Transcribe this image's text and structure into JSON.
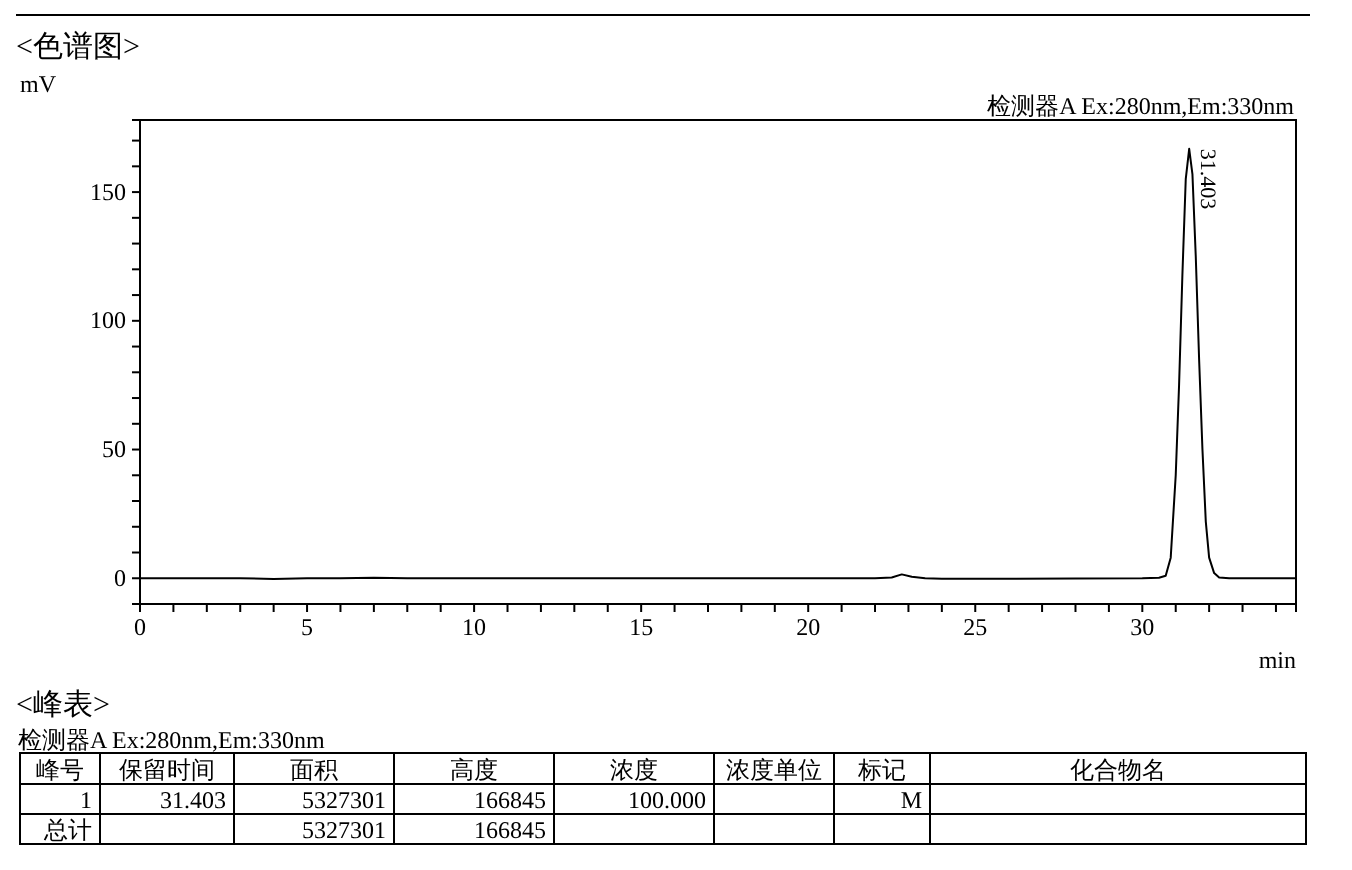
{
  "chart_data": [
    {
      "type": "line",
      "title": "<色谱图>",
      "ylabel": "mV",
      "xlabel": "min",
      "x": [
        0,
        1,
        2,
        3,
        4,
        5,
        6,
        7,
        8,
        9,
        10,
        12,
        14,
        16,
        18,
        20,
        21,
        22,
        22.5,
        22.8,
        23.1,
        23.5,
        24,
        26,
        28,
        30,
        30.5,
        30.7,
        30.85,
        31.0,
        31.1,
        31.2,
        31.3,
        31.403,
        31.5,
        31.6,
        31.7,
        31.8,
        31.9,
        32.0,
        32.15,
        32.3,
        32.6,
        33,
        34,
        34.6
      ],
      "series": [
        {
          "color": "#000000",
          "values": [
            0,
            0,
            0,
            0,
            -0.3,
            0,
            0,
            0.2,
            0,
            0,
            0,
            0,
            0,
            0,
            0,
            0,
            0,
            0,
            0.3,
            1.5,
            0.6,
            0,
            -0.2,
            -0.2,
            -0.1,
            0,
            0.2,
            1,
            8,
            40,
            75,
            118,
            155,
            166.8,
            157,
            125,
            85,
            50,
            22,
            8,
            2,
            0.3,
            0,
            0,
            0,
            0
          ]
        }
      ],
      "xlim": [
        0,
        34.6
      ],
      "ylim": [
        -10,
        178
      ],
      "xticks": [
        0,
        {
          "value": 1,
          "label": null
        },
        {
          "value": 2,
          "label": null
        },
        {
          "value": 3,
          "label": null
        },
        {
          "value": 4,
          "label": null
        },
        5,
        {
          "value": 6,
          "label": null
        },
        {
          "value": 7,
          "label": null
        },
        {
          "value": 8,
          "label": null
        },
        {
          "value": 9,
          "label": null
        },
        10,
        {
          "value": 11,
          "label": null
        },
        {
          "value": 12,
          "label": null
        },
        {
          "value": 13,
          "label": null
        },
        {
          "value": 14,
          "label": null
        },
        15,
        {
          "value": 16,
          "label": null
        },
        {
          "value": 17,
          "label": null
        },
        {
          "value": 18,
          "label": null
        },
        {
          "value": 19,
          "label": null
        },
        20,
        {
          "value": 21,
          "label": null
        },
        {
          "value": 22,
          "label": null
        },
        {
          "value": 23,
          "label": null
        },
        {
          "value": 24,
          "label": null
        },
        25,
        {
          "value": 26,
          "label": null
        },
        {
          "value": 27,
          "label": null
        },
        {
          "value": 28,
          "label": null
        },
        {
          "value": 29,
          "label": null
        },
        30,
        {
          "value": 31,
          "label": null
        },
        {
          "value": 32,
          "label": null
        },
        {
          "value": 33,
          "label": null
        },
        {
          "value": 34,
          "label": null
        }
      ],
      "yticks": [
        {
          "value": -10,
          "label": null
        },
        0,
        {
          "value": 10,
          "label": null
        },
        {
          "value": 20,
          "label": null
        },
        {
          "value": 30,
          "label": null
        },
        {
          "value": 40,
          "label": null
        },
        50,
        {
          "value": 60,
          "label": null
        },
        {
          "value": 70,
          "label": null
        },
        {
          "value": 80,
          "label": null
        },
        {
          "value": 90,
          "label": null
        },
        100,
        {
          "value": 110,
          "label": null
        },
        {
          "value": 120,
          "label": null
        },
        {
          "value": 130,
          "label": null
        },
        {
          "value": 140,
          "label": null
        },
        150,
        {
          "value": 160,
          "label": null
        },
        {
          "value": 170,
          "label": null
        }
      ],
      "grid": false,
      "annotations": [
        "检测器A Ex:280nm,Em:330nm",
        {
          "text": "31.403",
          "x": 31.403,
          "y": 166.8
        }
      ]
    },
    {
      "type": "other",
      "title": "<峰表>",
      "subtitle": "检测器A Ex:280nm,Em:330nm",
      "categories": [
        "峰号",
        "保留时间",
        "面积",
        "高度",
        "浓度",
        "浓度单位",
        "标记",
        "化合物名"
      ],
      "cell_labels": [
        [
          "1",
          "31.403",
          "5327301",
          "166845",
          "100.000",
          null,
          "M",
          null
        ],
        [
          "总计",
          null,
          "5327301",
          "166845",
          null,
          null,
          null,
          null
        ]
      ]
    }
  ]
}
